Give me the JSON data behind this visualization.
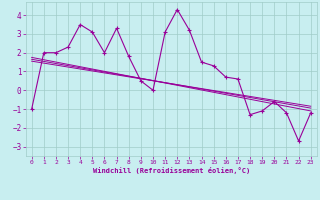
{
  "title": "",
  "xlabel": "Windchill (Refroidissement éolien,°C)",
  "ylabel": "",
  "background_color": "#c8eef0",
  "grid_color": "#a0ccc8",
  "line_color": "#990099",
  "xlim": [
    -0.5,
    23.5
  ],
  "ylim": [
    -3.5,
    4.7
  ],
  "xticks": [
    0,
    1,
    2,
    3,
    4,
    5,
    6,
    7,
    8,
    9,
    10,
    11,
    12,
    13,
    14,
    15,
    16,
    17,
    18,
    19,
    20,
    21,
    22,
    23
  ],
  "yticks": [
    -3,
    -2,
    -1,
    0,
    1,
    2,
    3,
    4
  ],
  "main_x": [
    0,
    1,
    2,
    3,
    4,
    5,
    6,
    7,
    8,
    9,
    10,
    11,
    12,
    13,
    14,
    15,
    16,
    17,
    18,
    19,
    20,
    21,
    22,
    23
  ],
  "main_y": [
    -1.0,
    2.0,
    2.0,
    2.3,
    3.5,
    3.1,
    2.0,
    3.3,
    1.8,
    0.5,
    0.0,
    3.1,
    4.3,
    3.2,
    1.5,
    1.3,
    0.7,
    0.6,
    -1.3,
    -1.1,
    -0.6,
    -1.2,
    -2.7,
    -1.2
  ],
  "line2_x": [
    0,
    23
  ],
  "line2_y": [
    1.75,
    -1.1
  ],
  "line3_x": [
    0,
    23
  ],
  "line3_y": [
    1.55,
    -0.85
  ],
  "line4_x": [
    0,
    23
  ],
  "line4_y": [
    1.65,
    -0.95
  ]
}
